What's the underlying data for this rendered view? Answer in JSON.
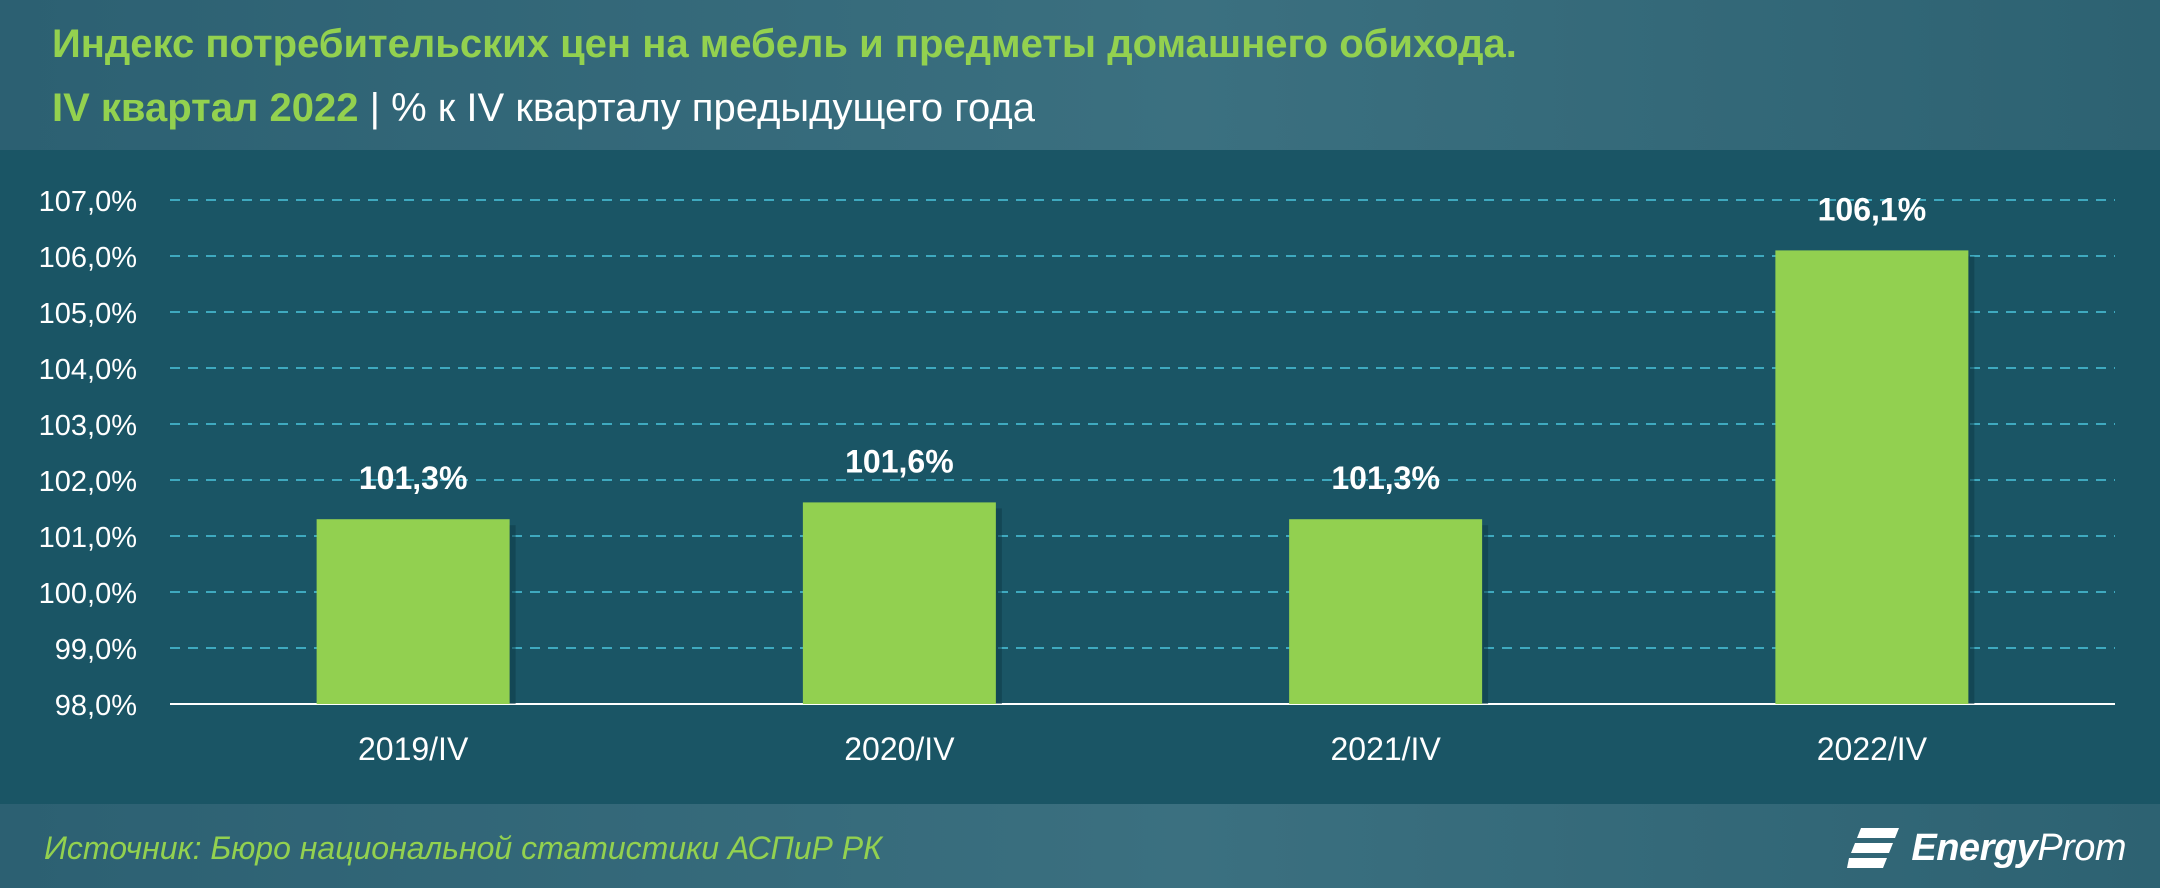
{
  "header": {
    "title_line1": "Индекс потребительских цен на мебель и предметы домашнего обихода.",
    "title_accent": "IV квартал 2022",
    "title_separator": "|",
    "title_rest": "% к IV кварталу предыдущего года"
  },
  "footer": {
    "source": "Источник: Бюро национальной статистики АСПиР РК",
    "logo_bold": "Energy",
    "logo_rest": "Prom"
  },
  "colors": {
    "bar": "#92d050",
    "grid": "#3fa9bf",
    "tick_text": "#ffffff",
    "label_text": "#ffffff"
  },
  "chart_data": {
    "type": "bar",
    "categories": [
      "2019/IV",
      "2020/IV",
      "2021/IV",
      "2022/IV"
    ],
    "values": [
      101.3,
      101.6,
      101.3,
      106.1
    ],
    "data_labels": [
      "101,3%",
      "101,6%",
      "101,3%",
      "106,1%"
    ],
    "y_ticks": [
      98,
      99,
      100,
      101,
      102,
      103,
      104,
      105,
      106,
      107
    ],
    "y_tick_labels": [
      "98,0%",
      "99,0%",
      "100,0%",
      "101,0%",
      "102,0%",
      "103,0%",
      "104,0%",
      "105,0%",
      "106,0%",
      "107,0%"
    ],
    "ylim": [
      98,
      107
    ],
    "grid": true,
    "grid_style": "dashed",
    "legend": "none"
  }
}
